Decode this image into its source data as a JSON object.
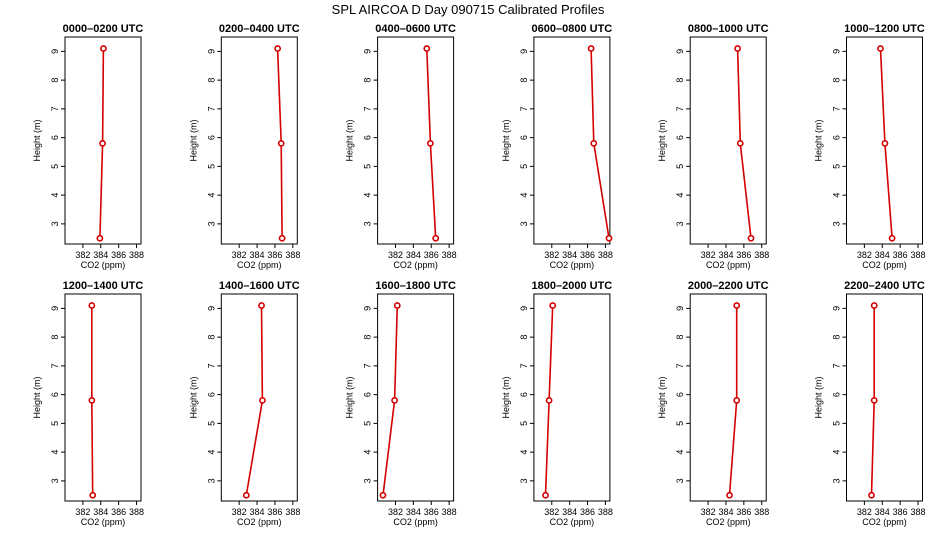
{
  "title": "SPL AIRCOA D  Day 090715  Calibrated Profiles",
  "chart_data": [
    {
      "type": "line",
      "title": "0000–0200 UTC",
      "xlabel": "CO2 (ppm)",
      "ylabel": "Height (m)",
      "xlim": [
        380,
        388.5
      ],
      "ylim": [
        2.3,
        9.5
      ],
      "xticks": [
        382,
        384,
        386,
        388
      ],
      "yticks": [
        3,
        4,
        5,
        6,
        7,
        8,
        9
      ],
      "x": [
        383.9,
        384.2,
        384.3
      ],
      "y": [
        2.5,
        5.8,
        9.1
      ]
    },
    {
      "type": "line",
      "title": "0200–0400 UTC",
      "xlabel": "CO2 (ppm)",
      "ylabel": "Height (m)",
      "xlim": [
        380,
        388.5
      ],
      "ylim": [
        2.3,
        9.5
      ],
      "xticks": [
        382,
        384,
        386,
        388
      ],
      "yticks": [
        3,
        4,
        5,
        6,
        7,
        8,
        9
      ],
      "x": [
        386.8,
        386.7,
        386.3
      ],
      "y": [
        2.5,
        5.8,
        9.1
      ]
    },
    {
      "type": "line",
      "title": "0400–0600 UTC",
      "xlabel": "CO2 (ppm)",
      "ylabel": "Height (m)",
      "xlim": [
        380,
        388.5
      ],
      "ylim": [
        2.3,
        9.5
      ],
      "xticks": [
        382,
        384,
        386,
        388
      ],
      "yticks": [
        3,
        4,
        5,
        6,
        7,
        8,
        9
      ],
      "x": [
        386.5,
        385.9,
        385.5
      ],
      "y": [
        2.5,
        5.8,
        9.1
      ]
    },
    {
      "type": "line",
      "title": "0600–0800 UTC",
      "xlabel": "CO2 (ppm)",
      "ylabel": "Height (m)",
      "xlim": [
        380,
        388.5
      ],
      "ylim": [
        2.3,
        9.5
      ],
      "xticks": [
        382,
        384,
        386,
        388
      ],
      "yticks": [
        3,
        4,
        5,
        6,
        7,
        8,
        9
      ],
      "x": [
        388.4,
        386.7,
        386.4
      ],
      "y": [
        2.5,
        5.8,
        9.1
      ]
    },
    {
      "type": "line",
      "title": "0800–1000 UTC",
      "xlabel": "CO2 (ppm)",
      "ylabel": "Height (m)",
      "xlim": [
        380,
        388.5
      ],
      "ylim": [
        2.3,
        9.5
      ],
      "xticks": [
        382,
        384,
        386,
        388
      ],
      "yticks": [
        3,
        4,
        5,
        6,
        7,
        8,
        9
      ],
      "x": [
        386.8,
        385.6,
        385.3
      ],
      "y": [
        2.5,
        5.8,
        9.1
      ]
    },
    {
      "type": "line",
      "title": "1000–1200 UTC",
      "xlabel": "CO2 (ppm)",
      "ylabel": "Height (m)",
      "xlim": [
        380,
        388.5
      ],
      "ylim": [
        2.3,
        9.5
      ],
      "xticks": [
        382,
        384,
        386,
        388
      ],
      "yticks": [
        3,
        4,
        5,
        6,
        7,
        8,
        9
      ],
      "x": [
        385.1,
        384.3,
        383.8
      ],
      "y": [
        2.5,
        5.8,
        9.1
      ]
    },
    {
      "type": "line",
      "title": "1200–1400 UTC",
      "xlabel": "CO2 (ppm)",
      "ylabel": "Height (m)",
      "xlim": [
        380,
        388.5
      ],
      "ylim": [
        2.3,
        9.5
      ],
      "xticks": [
        382,
        384,
        386,
        388
      ],
      "yticks": [
        3,
        4,
        5,
        6,
        7,
        8,
        9
      ],
      "x": [
        383.1,
        383.0,
        383.0
      ],
      "y": [
        2.5,
        5.8,
        9.1
      ]
    },
    {
      "type": "line",
      "title": "1400–1600 UTC",
      "xlabel": "CO2 (ppm)",
      "ylabel": "Height (m)",
      "xlim": [
        380,
        388.5
      ],
      "ylim": [
        2.3,
        9.5
      ],
      "xticks": [
        382,
        384,
        386,
        388
      ],
      "yticks": [
        3,
        4,
        5,
        6,
        7,
        8,
        9
      ],
      "x": [
        382.8,
        384.6,
        384.5
      ],
      "y": [
        2.5,
        5.8,
        9.1
      ]
    },
    {
      "type": "line",
      "title": "1600–1800 UTC",
      "xlabel": "CO2 (ppm)",
      "ylabel": "Height (m)",
      "xlim": [
        380,
        388.5
      ],
      "ylim": [
        2.3,
        9.5
      ],
      "xticks": [
        382,
        384,
        386,
        388
      ],
      "yticks": [
        3,
        4,
        5,
        6,
        7,
        8,
        9
      ],
      "x": [
        380.6,
        381.9,
        382.2
      ],
      "y": [
        2.5,
        5.8,
        9.1
      ]
    },
    {
      "type": "line",
      "title": "1800–2000 UTC",
      "xlabel": "CO2 (ppm)",
      "ylabel": "Height (m)",
      "xlim": [
        380,
        388.5
      ],
      "ylim": [
        2.3,
        9.5
      ],
      "xticks": [
        382,
        384,
        386,
        388
      ],
      "yticks": [
        3,
        4,
        5,
        6,
        7,
        8,
        9
      ],
      "x": [
        381.3,
        381.7,
        382.1
      ],
      "y": [
        2.5,
        5.8,
        9.1
      ]
    },
    {
      "type": "line",
      "title": "2000–2200 UTC",
      "xlabel": "CO2 (ppm)",
      "ylabel": "Height (m)",
      "xlim": [
        380,
        388.5
      ],
      "ylim": [
        2.3,
        9.5
      ],
      "xticks": [
        382,
        384,
        386,
        388
      ],
      "yticks": [
        3,
        4,
        5,
        6,
        7,
        8,
        9
      ],
      "x": [
        384.4,
        385.2,
        385.2
      ],
      "y": [
        2.5,
        5.8,
        9.1
      ]
    },
    {
      "type": "line",
      "title": "2200–2400 UTC",
      "xlabel": "CO2 (ppm)",
      "ylabel": "Height (m)",
      "xlim": [
        380,
        388.5
      ],
      "ylim": [
        2.3,
        9.5
      ],
      "xticks": [
        382,
        384,
        386,
        388
      ],
      "yticks": [
        3,
        4,
        5,
        6,
        7,
        8,
        9
      ],
      "x": [
        382.8,
        383.1,
        383.1
      ],
      "y": [
        2.5,
        5.8,
        9.1
      ]
    }
  ],
  "colors": {
    "series": "#d40000",
    "marker_fill": "#ffffff",
    "axis": "#000000"
  }
}
